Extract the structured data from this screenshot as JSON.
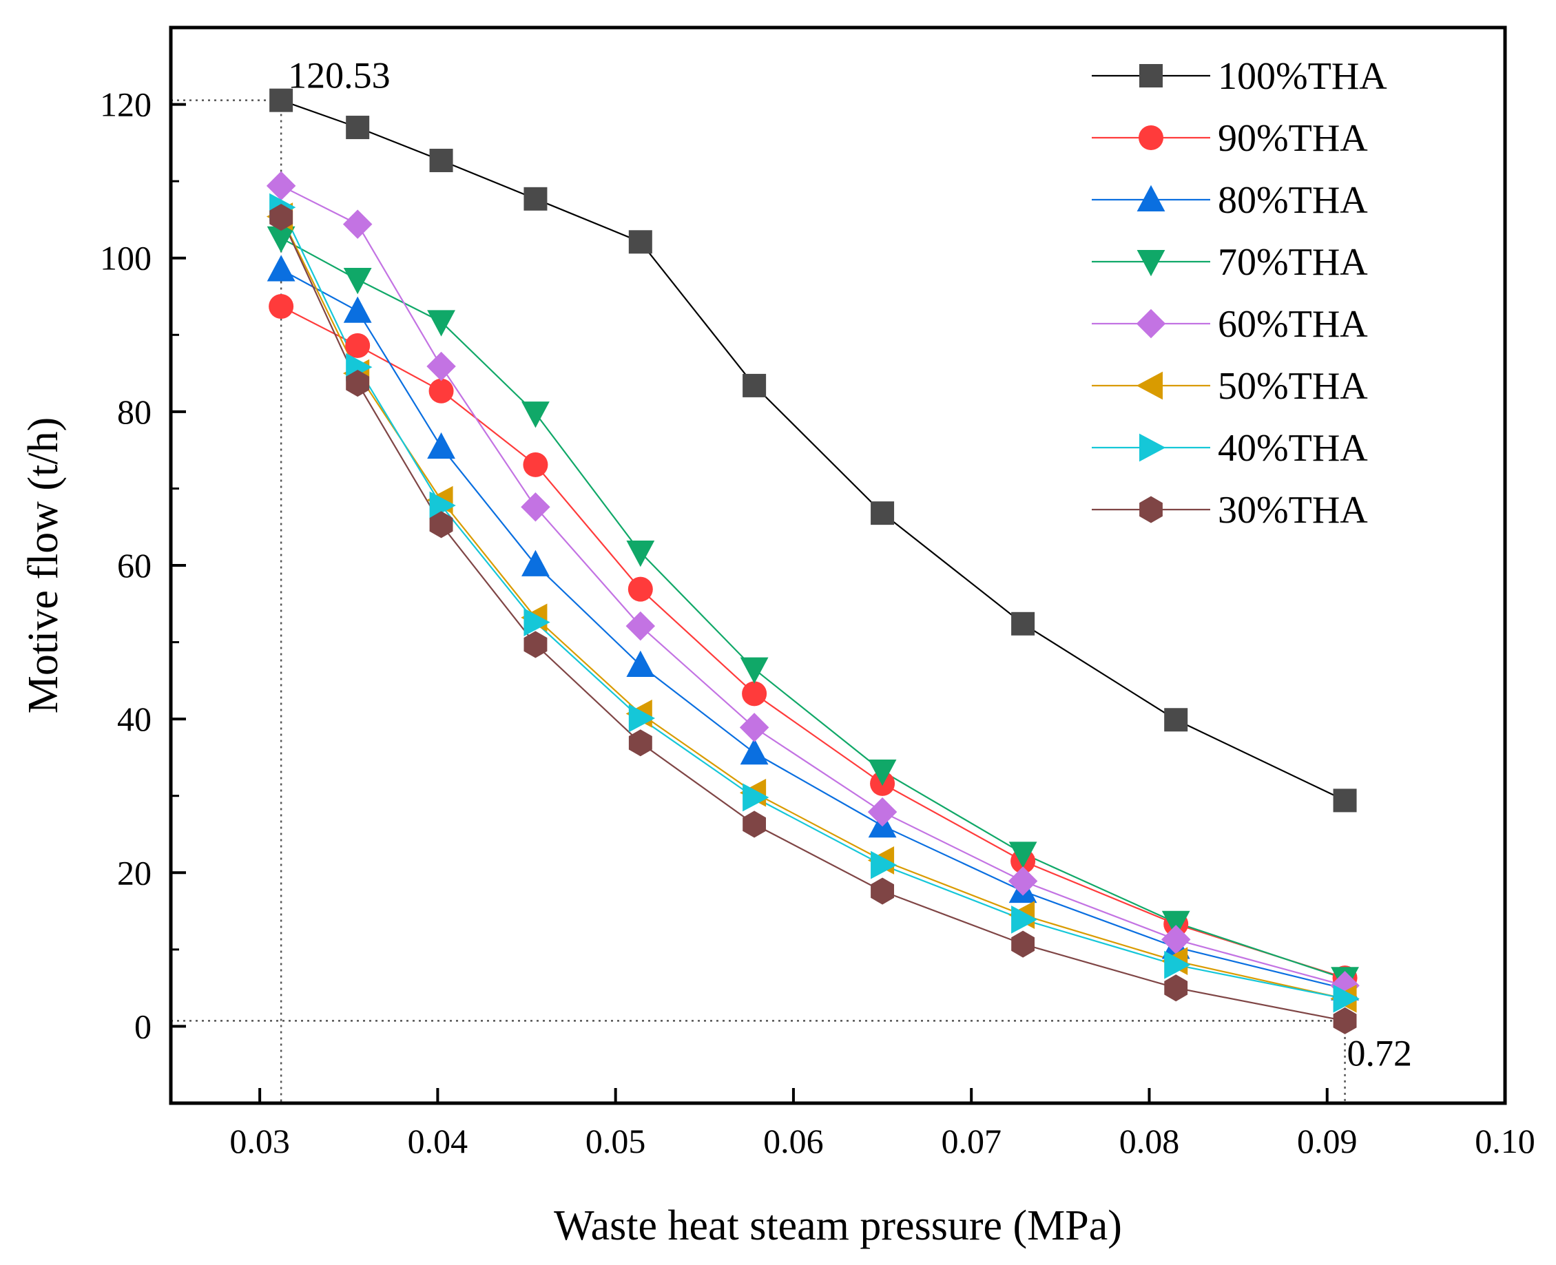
{
  "chart_data": {
    "type": "line",
    "title": "",
    "xlabel": "Waste heat steam pressure (MPa)",
    "ylabel": "Motive flow (t/h)",
    "xlim": [
      0.025,
      0.1
    ],
    "ylim": [
      -10,
      130
    ],
    "x_ticks": [
      "0.03",
      "0.04",
      "0.05",
      "0.06",
      "0.07",
      "0.08",
      "0.09",
      "0.10"
    ],
    "y_ticks": [
      "0",
      "20",
      "40",
      "60",
      "80",
      "100",
      "120"
    ],
    "grid": false,
    "legend_position": "top-right",
    "x": [
      0.0312,
      0.0355,
      0.0402,
      0.0455,
      0.0514,
      0.0578,
      0.065,
      0.0729,
      0.0815,
      0.091
    ],
    "series": [
      {
        "name": "100%THA",
        "marker": "square",
        "color": "#4a4a4a",
        "line_color": "#000000",
        "values": [
          120.53,
          117.0,
          112.7,
          107.7,
          102.1,
          83.4,
          66.8,
          52.4,
          39.9,
          29.4
        ]
      },
      {
        "name": "90%THA",
        "marker": "circle",
        "color": "#ff3b3b",
        "line_color": "#ff3b3b",
        "values": [
          93.7,
          88.6,
          82.7,
          73.1,
          56.9,
          43.3,
          31.6,
          21.5,
          13.3,
          6.3
        ]
      },
      {
        "name": "80%THA",
        "marker": "triangle-up",
        "color": "#0a6fe0",
        "line_color": "#0a6fe0",
        "values": [
          98.5,
          93.1,
          75.4,
          60.1,
          47.0,
          35.6,
          26.1,
          17.6,
          10.3,
          4.9
        ]
      },
      {
        "name": "70%THA",
        "marker": "triangle-down",
        "color": "#10a868",
        "line_color": "#10a868",
        "values": [
          102.6,
          97.2,
          91.7,
          79.8,
          61.7,
          46.5,
          33.2,
          22.5,
          13.5,
          6.2
        ]
      },
      {
        "name": "60%THA",
        "marker": "diamond",
        "color": "#c373e3",
        "line_color": "#c373e3",
        "values": [
          109.4,
          104.4,
          85.9,
          67.6,
          52.1,
          38.9,
          27.9,
          18.9,
          11.3,
          5.3
        ]
      },
      {
        "name": "50%THA",
        "marker": "triangle-left",
        "color": "#d99b00",
        "line_color": "#d99b00",
        "values": [
          105.4,
          85.0,
          68.5,
          53.2,
          40.7,
          30.4,
          21.6,
          14.5,
          8.5,
          3.6
        ]
      },
      {
        "name": "40%THA",
        "marker": "triangle-right",
        "color": "#15c7d8",
        "line_color": "#15c7d8",
        "values": [
          106.6,
          85.8,
          67.8,
          52.6,
          40.1,
          29.8,
          21.0,
          13.9,
          8.0,
          3.6
        ]
      },
      {
        "name": "30%THA",
        "marker": "hexagon",
        "color": "#7f4545",
        "line_color": "#7f4545",
        "values": [
          105.3,
          83.7,
          65.3,
          49.7,
          36.9,
          26.3,
          17.6,
          10.7,
          5.0,
          0.72
        ]
      }
    ],
    "annotations": [
      {
        "text": "120.53",
        "x": 0.0312,
        "y": 120.53
      },
      {
        "text": "0.72",
        "x": 0.091,
        "y": 0.72
      }
    ]
  }
}
